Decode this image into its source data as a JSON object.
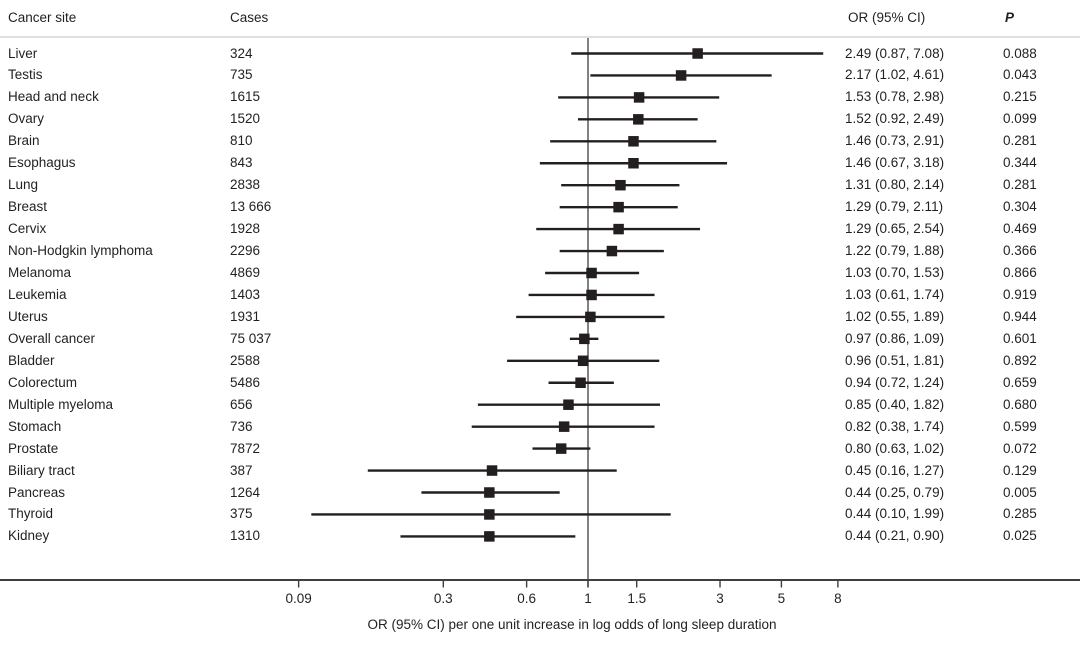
{
  "colors": {
    "text": "#231f20",
    "marker": "#231f20",
    "ci_line": "#231f20",
    "axis_line": "#3f3f3f",
    "reference_line": "#4d4d4d",
    "header_rule": "#e0e0e0",
    "background": "#ffffff"
  },
  "chart_data": {
    "type": "scatter",
    "subtype": "forest-plot",
    "title": "",
    "xlabel": "OR (95% CI) per one unit increase in log odds of long sleep duration",
    "ylabel": "",
    "x_scale": "log",
    "x_ticks": [
      0.09,
      0.3,
      0.6,
      1,
      1.5,
      3,
      5,
      8
    ],
    "x_tick_labels": [
      "0.09",
      "0.3",
      "0.6",
      "1",
      "1.5",
      "3",
      "5",
      "8"
    ],
    "reference_line": 1,
    "legend": "none",
    "grid": false,
    "columns": [
      "Cancer site",
      "Cases",
      "OR (95% CI)",
      "P"
    ],
    "rows": [
      {
        "site": "Liver",
        "cases": "324",
        "or": 2.49,
        "ci_low": 0.87,
        "ci_high": 7.08,
        "or_text": "2.49 (0.87, 7.08)",
        "p": "0.088"
      },
      {
        "site": "Testis",
        "cases": "735",
        "or": 2.17,
        "ci_low": 1.02,
        "ci_high": 4.61,
        "or_text": "2.17 (1.02, 4.61)",
        "p": "0.043"
      },
      {
        "site": "Head and neck",
        "cases": "1615",
        "or": 1.53,
        "ci_low": 0.78,
        "ci_high": 2.98,
        "or_text": "1.53 (0.78, 2.98)",
        "p": "0.215"
      },
      {
        "site": "Ovary",
        "cases": "1520",
        "or": 1.52,
        "ci_low": 0.92,
        "ci_high": 2.49,
        "or_text": "1.52 (0.92, 2.49)",
        "p": "0.099"
      },
      {
        "site": "Brain",
        "cases": "810",
        "or": 1.46,
        "ci_low": 0.73,
        "ci_high": 2.91,
        "or_text": "1.46 (0.73, 2.91)",
        "p": "0.281"
      },
      {
        "site": "Esophagus",
        "cases": "843",
        "or": 1.46,
        "ci_low": 0.67,
        "ci_high": 3.18,
        "or_text": "1.46 (0.67, 3.18)",
        "p": "0.344"
      },
      {
        "site": "Lung",
        "cases": "2838",
        "or": 1.31,
        "ci_low": 0.8,
        "ci_high": 2.14,
        "or_text": "1.31 (0.80, 2.14)",
        "p": "0.281"
      },
      {
        "site": "Breast",
        "cases": "13 666",
        "or": 1.29,
        "ci_low": 0.79,
        "ci_high": 2.11,
        "or_text": "1.29 (0.79, 2.11)",
        "p": "0.304"
      },
      {
        "site": "Cervix",
        "cases": "1928",
        "or": 1.29,
        "ci_low": 0.65,
        "ci_high": 2.54,
        "or_text": "1.29 (0.65, 2.54)",
        "p": "0.469"
      },
      {
        "site": "Non-Hodgkin lymphoma",
        "cases": "2296",
        "or": 1.22,
        "ci_low": 0.79,
        "ci_high": 1.88,
        "or_text": "1.22 (0.79, 1.88)",
        "p": "0.366"
      },
      {
        "site": "Melanoma",
        "cases": "4869",
        "or": 1.03,
        "ci_low": 0.7,
        "ci_high": 1.53,
        "or_text": "1.03 (0.70, 1.53)",
        "p": "0.866"
      },
      {
        "site": "Leukemia",
        "cases": "1403",
        "or": 1.03,
        "ci_low": 0.61,
        "ci_high": 1.74,
        "or_text": "1.03 (0.61, 1.74)",
        "p": "0.919"
      },
      {
        "site": "Uterus",
        "cases": "1931",
        "or": 1.02,
        "ci_low": 0.55,
        "ci_high": 1.89,
        "or_text": "1.02 (0.55, 1.89)",
        "p": "0.944"
      },
      {
        "site": "Overall cancer",
        "cases": "75 037",
        "or": 0.97,
        "ci_low": 0.86,
        "ci_high": 1.09,
        "or_text": "0.97 (0.86, 1.09)",
        "p": "0.601"
      },
      {
        "site": "Bladder",
        "cases": "2588",
        "or": 0.96,
        "ci_low": 0.51,
        "ci_high": 1.81,
        "or_text": "0.96 (0.51, 1.81)",
        "p": "0.892"
      },
      {
        "site": "Colorectum",
        "cases": "5486",
        "or": 0.94,
        "ci_low": 0.72,
        "ci_high": 1.24,
        "or_text": "0.94 (0.72, 1.24)",
        "p": "0.659"
      },
      {
        "site": "Multiple myeloma",
        "cases": "656",
        "or": 0.85,
        "ci_low": 0.4,
        "ci_high": 1.82,
        "or_text": "0.85 (0.40, 1.82)",
        "p": "0.680"
      },
      {
        "site": "Stomach",
        "cases": "736",
        "or": 0.82,
        "ci_low": 0.38,
        "ci_high": 1.74,
        "or_text": "0.82 (0.38, 1.74)",
        "p": "0.599"
      },
      {
        "site": "Prostate",
        "cases": "7872",
        "or": 0.8,
        "ci_low": 0.63,
        "ci_high": 1.02,
        "or_text": "0.80 (0.63, 1.02)",
        "p": "0.072"
      },
      {
        "site": "Biliary tract",
        "cases": "387",
        "or": 0.45,
        "ci_low": 0.16,
        "ci_high": 1.27,
        "or_text": "0.45 (0.16, 1.27)",
        "p": "0.129"
      },
      {
        "site": "Pancreas",
        "cases": "1264",
        "or": 0.44,
        "ci_low": 0.25,
        "ci_high": 0.79,
        "or_text": "0.44 (0.25, 0.79)",
        "p": "0.005"
      },
      {
        "site": "Thyroid",
        "cases": "375",
        "or": 0.44,
        "ci_low": 0.1,
        "ci_high": 1.99,
        "or_text": "0.44 (0.10, 1.99)",
        "p": "0.285"
      },
      {
        "site": "Kidney",
        "cases": "1310",
        "or": 0.44,
        "ci_low": 0.21,
        "ci_high": 0.9,
        "or_text": "0.44 (0.21, 0.90)",
        "p": "0.025"
      }
    ]
  }
}
